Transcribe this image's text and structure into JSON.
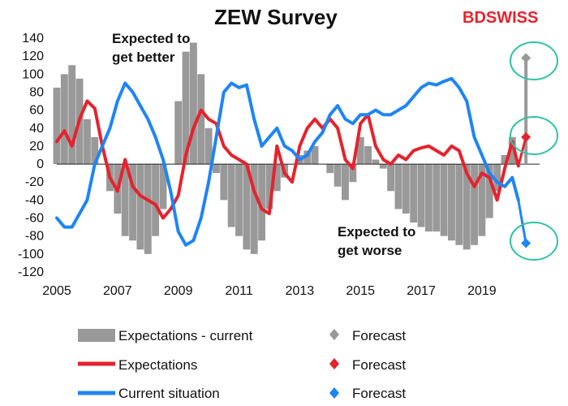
{
  "logo": {
    "text": "BDSWISS",
    "part1": "BD",
    "part2": "SWISS",
    "color": "#e5232d"
  },
  "chart_data": {
    "type": "bar",
    "title": "ZEW Survey",
    "xlabel": "",
    "ylabel": "",
    "ylim": [
      -120,
      140
    ],
    "yticks": [
      -120,
      -100,
      -80,
      -60,
      -40,
      -20,
      0,
      20,
      40,
      60,
      80,
      100,
      120,
      140
    ],
    "xlim": [
      2005,
      2020.9
    ],
    "xticks": [
      2005,
      2007,
      2009,
      2011,
      2013,
      2015,
      2017,
      2019
    ],
    "grid": false,
    "legend_position": "bottom",
    "colors": {
      "expectations_current": "#999999",
      "expectations": "#e5232d",
      "current_situation": "#1f85f3",
      "highlight_circles": "#2ec4a2"
    },
    "series": [
      {
        "name": "Expectations - current",
        "kind": "bar",
        "x": [
          2005.0,
          2005.25,
          2005.5,
          2005.75,
          2006.0,
          2006.25,
          2006.5,
          2006.75,
          2007.0,
          2007.25,
          2007.5,
          2007.75,
          2008.0,
          2008.25,
          2008.5,
          2008.75,
          2009.0,
          2009.25,
          2009.5,
          2009.75,
          2010.0,
          2010.25,
          2010.5,
          2010.75,
          2011.0,
          2011.25,
          2011.5,
          2011.75,
          2012.0,
          2012.25,
          2012.5,
          2012.75,
          2013.0,
          2013.25,
          2013.5,
          2013.75,
          2014.0,
          2014.25,
          2014.5,
          2014.75,
          2015.0,
          2015.25,
          2015.5,
          2015.75,
          2016.0,
          2016.25,
          2016.5,
          2016.75,
          2017.0,
          2017.25,
          2017.5,
          2017.75,
          2018.0,
          2018.25,
          2018.5,
          2018.75,
          2019.0,
          2019.25,
          2019.5,
          2019.75,
          2020.0
        ],
        "values": [
          85,
          100,
          110,
          95,
          50,
          30,
          0,
          -30,
          -55,
          -80,
          -85,
          -95,
          -100,
          -80,
          -50,
          0,
          70,
          125,
          135,
          100,
          40,
          -10,
          -40,
          -70,
          -80,
          -95,
          -100,
          -85,
          -50,
          -30,
          -15,
          0,
          10,
          15,
          20,
          0,
          -10,
          -25,
          -40,
          -20,
          30,
          20,
          5,
          -5,
          -30,
          -50,
          -55,
          -65,
          -70,
          -75,
          -75,
          -80,
          -85,
          -90,
          -95,
          -90,
          -80,
          -60,
          -30,
          10,
          30
        ]
      },
      {
        "name": "Expectations",
        "kind": "line",
        "x": [
          2005.0,
          2005.25,
          2005.5,
          2005.75,
          2006.0,
          2006.25,
          2006.5,
          2006.75,
          2007.0,
          2007.25,
          2007.5,
          2007.75,
          2008.0,
          2008.25,
          2008.5,
          2008.75,
          2009.0,
          2009.25,
          2009.5,
          2009.75,
          2010.0,
          2010.25,
          2010.5,
          2010.75,
          2011.0,
          2011.25,
          2011.5,
          2011.75,
          2012.0,
          2012.25,
          2012.5,
          2012.75,
          2013.0,
          2013.25,
          2013.5,
          2013.75,
          2014.0,
          2014.25,
          2014.5,
          2014.75,
          2015.0,
          2015.25,
          2015.5,
          2015.75,
          2016.0,
          2016.25,
          2016.5,
          2016.75,
          2017.0,
          2017.25,
          2017.5,
          2017.75,
          2018.0,
          2018.25,
          2018.5,
          2018.75,
          2019.0,
          2019.25,
          2019.5,
          2019.75,
          2020.0,
          2020.2
        ],
        "values": [
          25,
          37,
          20,
          50,
          70,
          62,
          20,
          -15,
          -30,
          5,
          -25,
          -35,
          -40,
          -45,
          -60,
          -50,
          -35,
          10,
          40,
          60,
          50,
          45,
          20,
          10,
          5,
          0,
          -30,
          -50,
          -55,
          20,
          -10,
          -20,
          20,
          40,
          50,
          40,
          50,
          40,
          5,
          -5,
          45,
          55,
          20,
          5,
          0,
          10,
          5,
          15,
          18,
          20,
          15,
          10,
          20,
          15,
          -10,
          -25,
          -10,
          -15,
          -40,
          -5,
          25,
          -2
        ]
      },
      {
        "name": "Current situation",
        "kind": "line",
        "x": [
          2005.0,
          2005.25,
          2005.5,
          2005.75,
          2006.0,
          2006.25,
          2006.5,
          2006.75,
          2007.0,
          2007.25,
          2007.5,
          2007.75,
          2008.0,
          2008.25,
          2008.5,
          2008.75,
          2009.0,
          2009.25,
          2009.5,
          2009.75,
          2010.0,
          2010.25,
          2010.5,
          2010.75,
          2011.0,
          2011.25,
          2011.5,
          2011.75,
          2012.0,
          2012.25,
          2012.5,
          2012.75,
          2013.0,
          2013.25,
          2013.5,
          2013.75,
          2014.0,
          2014.25,
          2014.5,
          2014.75,
          2015.0,
          2015.25,
          2015.5,
          2015.75,
          2016.0,
          2016.25,
          2016.5,
          2016.75,
          2017.0,
          2017.25,
          2017.5,
          2017.75,
          2018.0,
          2018.25,
          2018.5,
          2018.75,
          2019.0,
          2019.25,
          2019.5,
          2019.75,
          2020.0,
          2020.2
        ],
        "values": [
          -60,
          -70,
          -70,
          -55,
          -40,
          0,
          20,
          40,
          70,
          90,
          80,
          65,
          50,
          30,
          5,
          -30,
          -75,
          -90,
          -85,
          -60,
          -20,
          30,
          80,
          90,
          85,
          88,
          50,
          20,
          30,
          40,
          20,
          15,
          5,
          10,
          25,
          35,
          55,
          65,
          50,
          45,
          55,
          55,
          60,
          55,
          55,
          60,
          65,
          75,
          85,
          90,
          88,
          92,
          95,
          85,
          70,
          30,
          10,
          -10,
          -20,
          -25,
          -15,
          -40
        ]
      },
      {
        "name": "Forecast",
        "kind": "marker",
        "for": "Expectations - current",
        "x": 2020.45,
        "value": 118
      },
      {
        "name": "Forecast",
        "kind": "marker",
        "for": "Expectations",
        "x": 2020.45,
        "value": 30
      },
      {
        "name": "Forecast",
        "kind": "marker",
        "for": "Current situation",
        "x": 2020.45,
        "value": -88
      }
    ],
    "annotations": [
      {
        "lines": [
          "Expected to",
          "get better"
        ]
      },
      {
        "lines": [
          "Expected to",
          "get worse"
        ]
      }
    ],
    "legend": [
      {
        "label": "Expectations - current",
        "swatch": "bar",
        "color": "#999999"
      },
      {
        "label": "Forecast",
        "swatch": "diamond",
        "color": "#999999"
      },
      {
        "label": "Expectations",
        "swatch": "line",
        "color": "#e5232d"
      },
      {
        "label": "Forecast",
        "swatch": "diamond",
        "color": "#e5232d"
      },
      {
        "label": "Current situation",
        "swatch": "line",
        "color": "#1f85f3"
      },
      {
        "label": "Forecast",
        "swatch": "diamond",
        "color": "#1f85f3"
      }
    ]
  }
}
